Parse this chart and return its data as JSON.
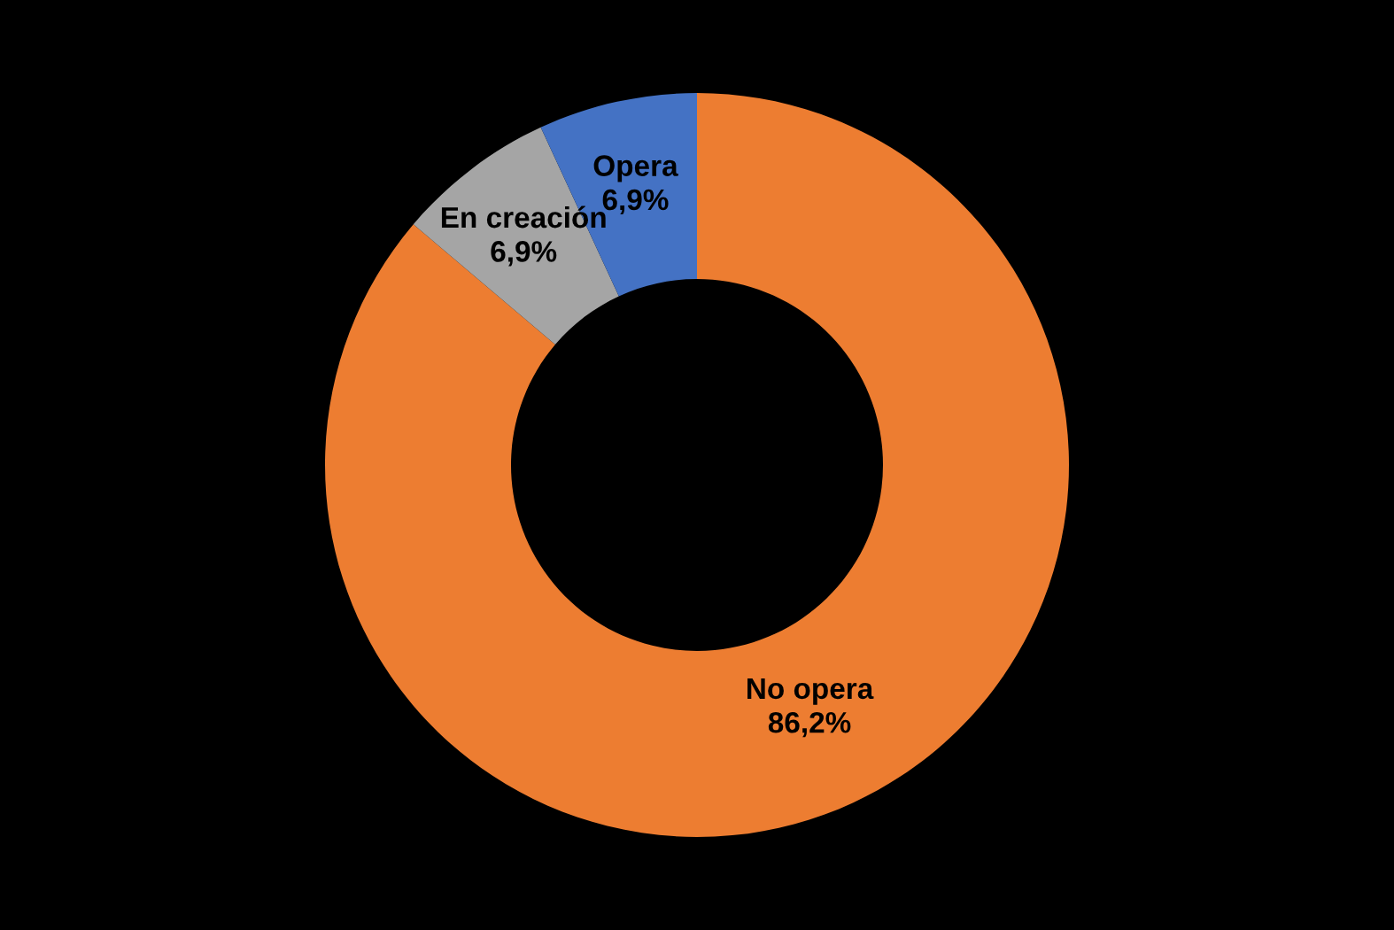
{
  "chart_data": {
    "type": "donut",
    "categories": [
      "No opera",
      "En creación",
      "Opera"
    ],
    "values": [
      86.2,
      6.9,
      6.9
    ],
    "colors": [
      "#ed7d31",
      "#a5a5a5",
      "#4472c4"
    ],
    "value_labels": [
      "86,2%",
      "6,9%",
      "6,9%"
    ],
    "legend": false
  }
}
